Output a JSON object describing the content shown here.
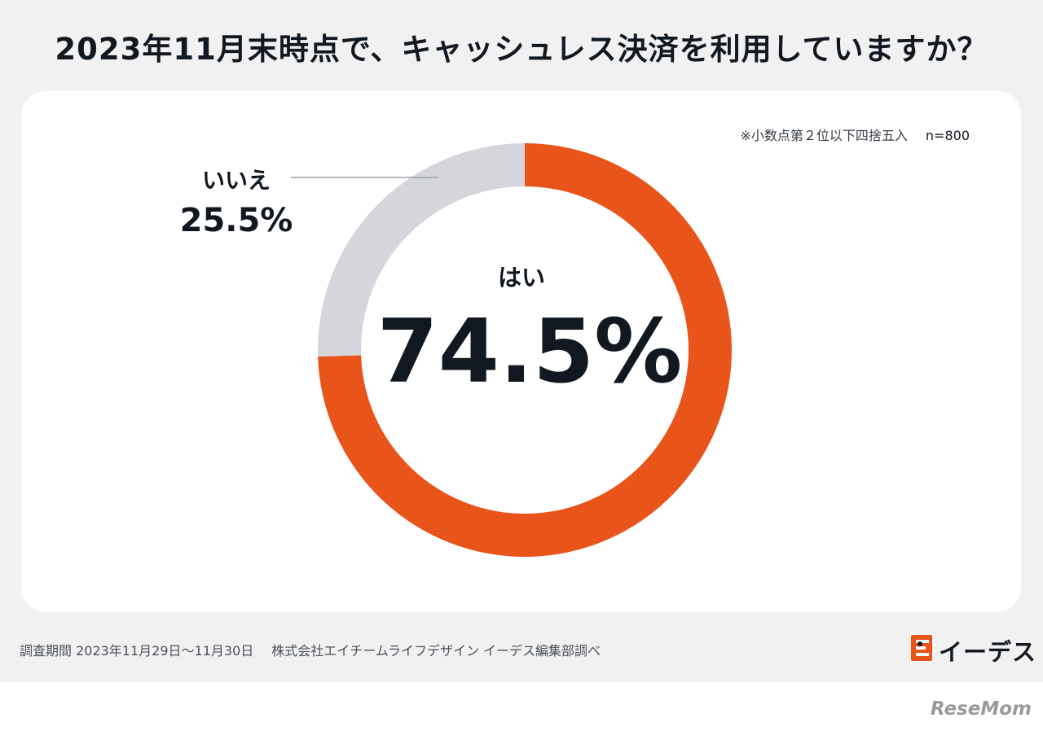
{
  "title": "2023年11月末時点で、キャッシュレス決済を利用していますか？",
  "note": {
    "rounding": "※小数点第２位以下四捨五入",
    "sample": "n=800"
  },
  "chart_data": {
    "type": "pie",
    "title": "2023年11月末時点で、キャッシュレス決済を利用していますか？",
    "unit": "%",
    "categories": [
      "はい",
      "いいえ"
    ],
    "values": [
      74.5,
      25.5
    ],
    "labels": [
      "74.5%",
      "25.5%"
    ],
    "colors": [
      "#e8541a",
      "#d5d6db"
    ]
  },
  "labels": {
    "yes_name": "はい",
    "yes_value": "74.5%",
    "no_name": "いいえ",
    "no_value": "25.5%"
  },
  "footer": {
    "period": "調査期間 2023年11月29日〜11月30日",
    "company": "株式会社エイチームライフデザイン イーデス編集部調べ"
  },
  "logo": {
    "text": "イーデス",
    "icon": "e-mascot-icon",
    "color": "#e8541a"
  },
  "watermark": "ReseMom"
}
